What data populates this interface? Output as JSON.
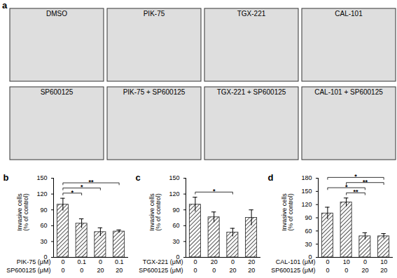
{
  "panel_a": {
    "label": "a",
    "images": [
      "DMSO",
      "PIK-75",
      "TGX-221",
      "CAL-101",
      "SP600125",
      "PIK-75 + SP600125",
      "TGX-221 + SP600125",
      "CAL-101 + SP600125"
    ]
  },
  "chart_data": [
    {
      "type": "bar",
      "panel": "b",
      "y_label": "Invasive cells\n(% of control)",
      "category_rows": [
        {
          "name": "PIK-75 (μM)",
          "labels": [
            "0",
            "0.1",
            "0",
            "0.1"
          ]
        },
        {
          "name": "SP600125 (μM)",
          "labels": [
            "0",
            "0",
            "20",
            "20"
          ]
        }
      ],
      "values": [
        100,
        64,
        48,
        49
      ],
      "errors": [
        12,
        9,
        8,
        3
      ],
      "significance": [
        {
          "from": 0,
          "to": 1,
          "label": "*"
        },
        {
          "from": 0,
          "to": 2,
          "label": "*"
        },
        {
          "from": 0,
          "to": 3,
          "label": "**"
        }
      ],
      "color": "#555555",
      "ylim": [
        0,
        150
      ],
      "yticks": [
        0,
        30,
        60,
        90,
        120,
        150
      ]
    },
    {
      "type": "bar",
      "panel": "c",
      "y_label": "Invasive cells\n(% of control)",
      "category_rows": [
        {
          "name": "TGX-221 (μM)",
          "labels": [
            "0",
            "20",
            "0",
            "20"
          ]
        },
        {
          "name": "SP600125 (μM)",
          "labels": [
            "0",
            "0",
            "20",
            "20"
          ]
        }
      ],
      "values": [
        100,
        76,
        47,
        75
      ],
      "errors": [
        14,
        10,
        8,
        15
      ],
      "significance": [
        {
          "from": 0,
          "to": 2,
          "label": "*"
        }
      ],
      "color": "#555555",
      "ylim": [
        0,
        150
      ],
      "yticks": [
        0,
        30,
        60,
        90,
        120,
        150
      ]
    },
    {
      "type": "bar",
      "panel": "d",
      "y_label": "Invasive cells\n(% of control)",
      "category_rows": [
        {
          "name": "CAL-101 (μM)",
          "labels": [
            "0",
            "10",
            "0",
            "10"
          ]
        },
        {
          "name": "SP600125 (μM)",
          "labels": [
            "0",
            "0",
            "20",
            "20"
          ]
        }
      ],
      "values": [
        100,
        125,
        48,
        48
      ],
      "errors": [
        14,
        10,
        8,
        6
      ],
      "significance": [
        {
          "from": 1,
          "to": 2,
          "label": "**"
        },
        {
          "from": 0,
          "to": 2,
          "label": "*"
        },
        {
          "from": 1,
          "to": 3,
          "label": "**"
        },
        {
          "from": 0,
          "to": 3,
          "label": "*"
        }
      ],
      "color": "#555555",
      "ylim": [
        0,
        180
      ],
      "yticks": [
        0,
        30,
        60,
        90,
        120,
        150,
        180
      ]
    }
  ]
}
